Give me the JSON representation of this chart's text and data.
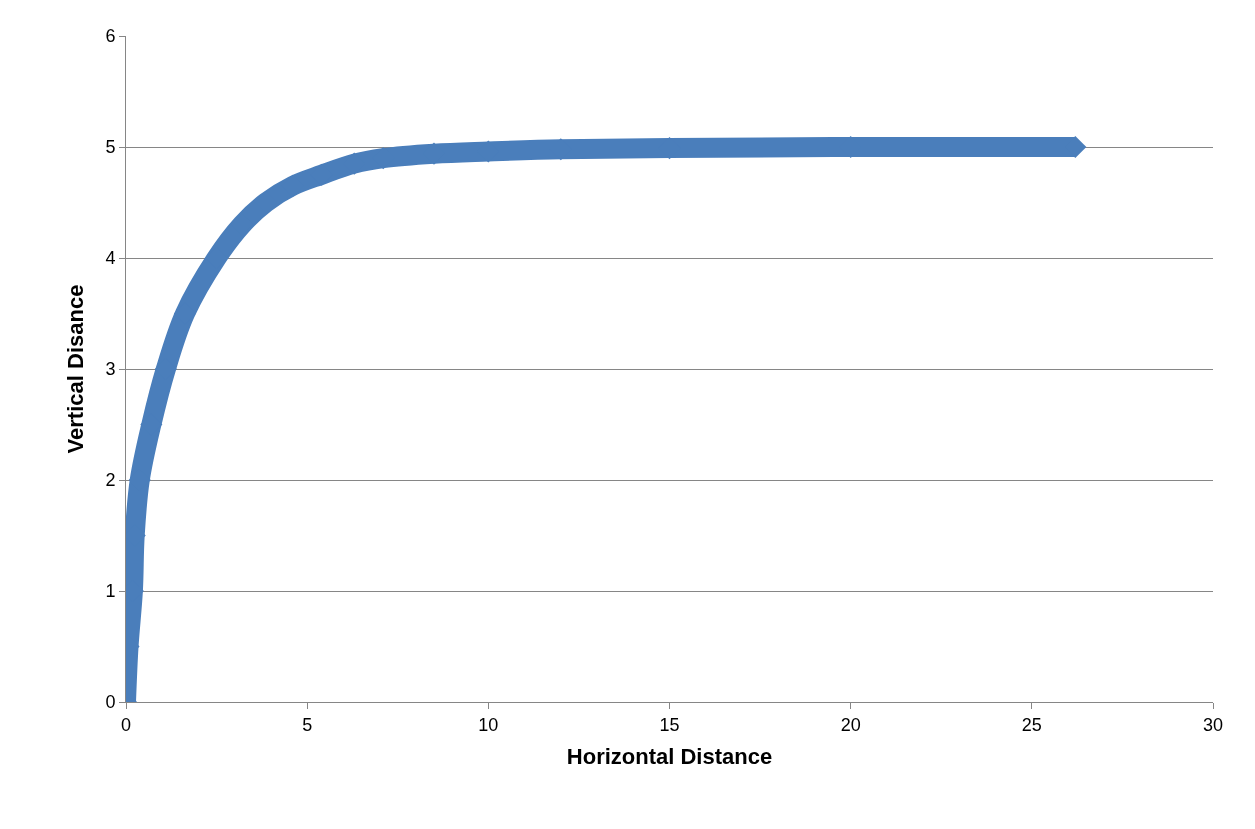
{
  "chart_data": {
    "type": "line",
    "xlabel": "Horizontal Distance",
    "ylabel": "Vertical Disance",
    "xlim": [
      0,
      30
    ],
    "xticks": [
      0,
      5,
      10,
      15,
      20,
      25,
      30
    ],
    "ylim": [
      0,
      6
    ],
    "yticks": [
      0,
      1,
      2,
      3,
      4,
      5,
      6
    ],
    "grid": "y",
    "marker": "diamond",
    "line_style": "solid",
    "series": [
      {
        "color": "#4a7ebb",
        "x": [
          0,
          0.07,
          0.19,
          0.24,
          0.38,
          0.7,
          1.1,
          1.63,
          2.5,
          3.2,
          3.86,
          4.6,
          5.4,
          6.3,
          7.1,
          8.5,
          10,
          12,
          15,
          20,
          26.2
        ],
        "values": [
          0,
          0.5,
          1,
          1.5,
          2,
          2.5,
          3,
          3.5,
          4,
          4.3,
          4.5,
          4.65,
          4.75,
          4.85,
          4.9,
          4.94,
          4.96,
          4.98,
          4.99,
          5,
          5
        ]
      }
    ]
  }
}
